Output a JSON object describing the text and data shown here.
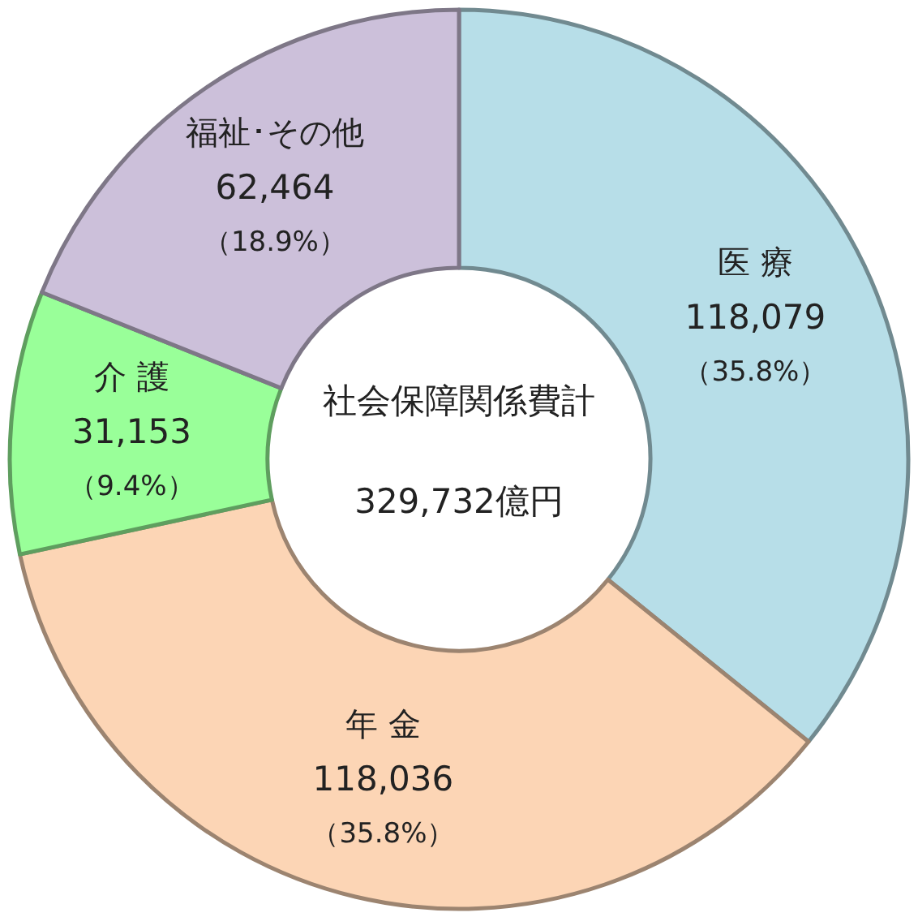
{
  "chart_data": {
    "type": "donut",
    "categories": [
      "医 療",
      "年 金",
      "介 護",
      "福祉･その他"
    ],
    "values": [
      118079,
      118036,
      31153,
      62464
    ],
    "colors": [
      "#b7dee8",
      "#fcd5b5",
      "#99ff99",
      "#ccc0da"
    ],
    "value_labels": [
      "118,079\n（35.8%）",
      "118,036\n（35.8%）",
      "31,153\n（9.4%）",
      "62,464\n（18.9%）"
    ],
    "annotations": [
      "社会保障関係費計",
      "329,732億円"
    ]
  }
}
